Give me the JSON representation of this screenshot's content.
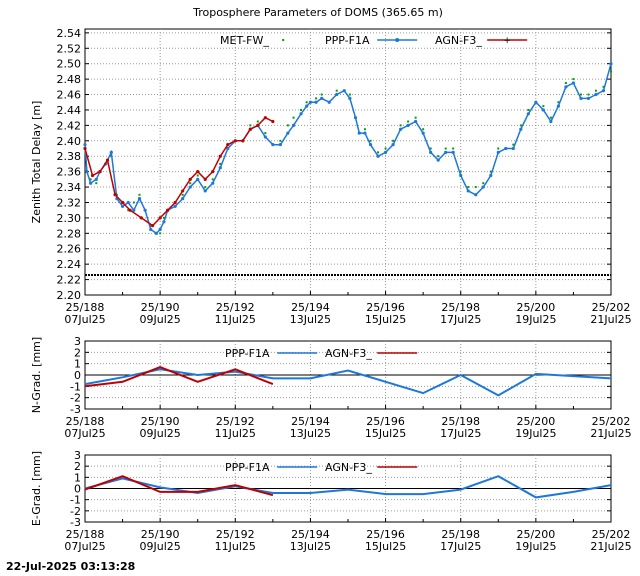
{
  "timestamp": "22-Jul-2025 03:13:28",
  "chart_data": [
    {
      "type": "scatter",
      "title": "Troposphere Parameters of DOMS (365.65 m)",
      "ylabel": "Zenith Total Delay [m]",
      "xlabel": "",
      "xlim": [
        188,
        202
      ],
      "ylim": [
        2.2,
        2.545
      ],
      "yticks": [
        "2.20",
        "2.22",
        "2.24",
        "2.26",
        "2.28",
        "2.30",
        "2.32",
        "2.34",
        "2.36",
        "2.38",
        "2.40",
        "2.42",
        "2.44",
        "2.46",
        "2.48",
        "2.50",
        "2.52",
        "2.54"
      ],
      "xticks": [
        {
          "top": "25/188",
          "bottom": "07Jul25"
        },
        {
          "top": "25/190",
          "bottom": "09Jul25"
        },
        {
          "top": "25/192",
          "bottom": "11Jul25"
        },
        {
          "top": "25/194",
          "bottom": "13Jul25"
        },
        {
          "top": "25/196",
          "bottom": "15Jul25"
        },
        {
          "top": "25/198",
          "bottom": "17Jul25"
        },
        {
          "top": "25/200",
          "bottom": "19Jul25"
        },
        {
          "top": "25/202",
          "bottom": "21Jul25"
        }
      ],
      "legend": [
        {
          "name": "MET-FW_",
          "color": "#00a000",
          "style": "points"
        },
        {
          "name": "PPP-F1A",
          "color": "#1e78dc",
          "style": "line-points"
        },
        {
          "name": "AGN-F3_",
          "color": "#c00000",
          "style": "line-cross"
        }
      ],
      "series": [
        {
          "name": "MET-FW_",
          "color": "#00a000",
          "x": [
            188.0,
            188.05,
            188.15,
            188.3,
            188.4,
            188.55,
            188.7,
            188.85,
            189.0,
            189.15,
            189.3,
            189.45,
            189.6,
            189.75,
            189.9,
            190.0,
            190.1,
            190.2,
            190.4,
            190.6,
            190.8,
            191.0,
            191.2,
            191.4,
            191.6,
            191.8,
            192.0,
            192.2,
            192.4,
            192.6,
            192.8,
            193.0,
            193.2,
            193.4,
            193.55,
            193.75,
            193.9,
            194.0,
            194.15,
            194.3,
            194.5,
            194.7,
            194.9,
            195.05,
            195.2,
            195.3,
            195.45,
            195.6,
            195.8,
            196.0,
            196.2,
            196.4,
            196.6,
            196.8,
            197.0,
            197.2,
            197.4,
            197.6,
            197.8,
            198.0,
            198.2,
            198.4,
            198.6,
            198.8,
            199.0,
            199.2,
            199.4,
            199.6,
            199.8,
            200.0,
            200.2,
            200.4,
            200.6,
            200.8,
            201.0,
            201.2,
            201.4,
            201.6,
            201.8,
            202.0
          ],
          "y": [
            2.39,
            2.36,
            2.35,
            2.345,
            2.36,
            2.37,
            2.38,
            2.33,
            2.315,
            2.31,
            2.32,
            2.33,
            2.31,
            2.29,
            2.28,
            2.28,
            2.3,
            2.31,
            2.32,
            2.33,
            2.345,
            2.355,
            2.34,
            2.35,
            2.37,
            2.395,
            2.4,
            2.4,
            2.42,
            2.425,
            2.41,
            2.395,
            2.4,
            2.42,
            2.43,
            2.44,
            2.45,
            2.45,
            2.455,
            2.46,
            2.45,
            2.465,
            2.465,
            2.46,
            2.43,
            2.41,
            2.415,
            2.4,
            2.385,
            2.39,
            2.4,
            2.42,
            2.425,
            2.43,
            2.415,
            2.39,
            2.38,
            2.39,
            2.39,
            2.36,
            2.34,
            2.34,
            2.345,
            2.36,
            2.39,
            2.39,
            2.395,
            2.42,
            2.44,
            2.45,
            2.445,
            2.43,
            2.45,
            2.475,
            2.48,
            2.46,
            2.46,
            2.465,
            2.47,
            2.49
          ]
        },
        {
          "name": "PPP-F1A",
          "color": "#1e78dc",
          "x": [
            188.0,
            188.05,
            188.15,
            188.3,
            188.4,
            188.55,
            188.7,
            188.85,
            189.0,
            189.15,
            189.3,
            189.45,
            189.6,
            189.75,
            189.9,
            190.0,
            190.1,
            190.2,
            190.4,
            190.6,
            190.8,
            191.0,
            191.2,
            191.4,
            191.6,
            191.8,
            192.0,
            192.2,
            192.4,
            192.6,
            192.8,
            193.0,
            193.2,
            193.4,
            193.55,
            193.75,
            193.9,
            194.0,
            194.15,
            194.3,
            194.5,
            194.7,
            194.9,
            195.05,
            195.2,
            195.3,
            195.45,
            195.6,
            195.8,
            196.0,
            196.2,
            196.4,
            196.6,
            196.8,
            197.0,
            197.2,
            197.4,
            197.6,
            197.8,
            198.0,
            198.2,
            198.4,
            198.6,
            198.8,
            199.0,
            199.2,
            199.4,
            199.6,
            199.8,
            200.0,
            200.2,
            200.4,
            200.6,
            200.8,
            201.0,
            201.2,
            201.4,
            201.6,
            201.8,
            202.0
          ],
          "y": [
            2.395,
            2.36,
            2.345,
            2.35,
            2.36,
            2.37,
            2.385,
            2.325,
            2.315,
            2.32,
            2.31,
            2.325,
            2.31,
            2.285,
            2.28,
            2.285,
            2.295,
            2.31,
            2.315,
            2.325,
            2.34,
            2.35,
            2.335,
            2.345,
            2.365,
            2.39,
            2.4,
            2.4,
            2.415,
            2.42,
            2.405,
            2.395,
            2.395,
            2.41,
            2.42,
            2.435,
            2.445,
            2.45,
            2.45,
            2.455,
            2.45,
            2.46,
            2.465,
            2.455,
            2.43,
            2.41,
            2.41,
            2.395,
            2.38,
            2.385,
            2.395,
            2.415,
            2.42,
            2.425,
            2.41,
            2.385,
            2.375,
            2.385,
            2.385,
            2.355,
            2.335,
            2.33,
            2.34,
            2.355,
            2.385,
            2.39,
            2.39,
            2.415,
            2.435,
            2.45,
            2.44,
            2.425,
            2.445,
            2.47,
            2.475,
            2.455,
            2.455,
            2.46,
            2.465,
            2.5
          ]
        },
        {
          "name": "AGN-F3_",
          "color": "#c00000",
          "x": [
            188.0,
            188.2,
            188.4,
            188.6,
            188.8,
            189.0,
            189.2,
            189.5,
            189.8,
            190.0,
            190.2,
            190.4,
            190.6,
            190.8,
            191.0,
            191.2,
            191.4,
            191.6,
            191.8,
            192.0,
            192.2,
            192.4,
            192.6,
            192.8,
            193.0
          ],
          "y": [
            2.39,
            2.355,
            2.36,
            2.375,
            2.33,
            2.32,
            2.31,
            2.3,
            2.29,
            2.3,
            2.31,
            2.32,
            2.335,
            2.35,
            2.36,
            2.35,
            2.36,
            2.38,
            2.395,
            2.4,
            2.4,
            2.415,
            2.42,
            2.43,
            2.425
          ]
        },
        {
          "name": "baseline",
          "color": "#000000",
          "x": [
            188,
            202
          ],
          "y": [
            2.226,
            2.226
          ]
        }
      ]
    },
    {
      "type": "line",
      "title": "",
      "ylabel": "N-Grad. [mm]",
      "xlim": [
        188,
        202
      ],
      "ylim": [
        -3,
        3
      ],
      "yticks": [
        "-3",
        "-2",
        "-1",
        "0",
        "1",
        "2",
        "3"
      ],
      "xticks": [
        {
          "top": "25/188",
          "bottom": "07Jul25"
        },
        {
          "top": "25/190",
          "bottom": "09Jul25"
        },
        {
          "top": "25/192",
          "bottom": "11Jul25"
        },
        {
          "top": "25/194",
          "bottom": "13Jul25"
        },
        {
          "top": "25/196",
          "bottom": "15Jul25"
        },
        {
          "top": "25/198",
          "bottom": "17Jul25"
        },
        {
          "top": "25/200",
          "bottom": "19Jul25"
        },
        {
          "top": "25/202",
          "bottom": "21Jul25"
        }
      ],
      "legend": [
        {
          "name": "PPP-F1A",
          "color": "#1e78dc"
        },
        {
          "name": "AGN-F3_",
          "color": "#c00000"
        }
      ],
      "series": [
        {
          "name": "PPP-F1A",
          "color": "#1e78dc",
          "x": [
            188,
            189,
            190,
            191,
            192,
            193,
            194,
            195,
            196,
            197,
            198,
            199,
            200,
            201,
            202
          ],
          "y": [
            -0.8,
            -0.2,
            0.5,
            0.0,
            0.3,
            -0.3,
            -0.3,
            0.4,
            -0.6,
            -1.6,
            0.0,
            -1.8,
            0.1,
            -0.1,
            -0.3
          ]
        },
        {
          "name": "AGN-F3_",
          "color": "#c00000",
          "x": [
            188,
            189,
            190,
            191,
            192,
            193
          ],
          "y": [
            -1.0,
            -0.6,
            0.7,
            -0.6,
            0.5,
            -0.8
          ]
        }
      ]
    },
    {
      "type": "line",
      "title": "",
      "ylabel": "E-Grad. [mm]",
      "xlim": [
        188,
        202
      ],
      "ylim": [
        -3,
        3
      ],
      "yticks": [
        "-3",
        "-2",
        "-1",
        "0",
        "1",
        "2",
        "3"
      ],
      "xticks": [
        {
          "top": "25/188",
          "bottom": "07Jul25"
        },
        {
          "top": "25/190",
          "bottom": "09Jul25"
        },
        {
          "top": "25/192",
          "bottom": "11Jul25"
        },
        {
          "top": "25/194",
          "bottom": "13Jul25"
        },
        {
          "top": "25/196",
          "bottom": "15Jul25"
        },
        {
          "top": "25/198",
          "bottom": "17Jul25"
        },
        {
          "top": "25/200",
          "bottom": "19Jul25"
        },
        {
          "top": "25/202",
          "bottom": "21Jul25"
        }
      ],
      "legend": [
        {
          "name": "PPP-F1A",
          "color": "#1e78dc"
        },
        {
          "name": "AGN-F3_",
          "color": "#c00000"
        }
      ],
      "series": [
        {
          "name": "PPP-F1A",
          "color": "#1e78dc",
          "x": [
            188,
            189,
            190,
            191,
            192,
            193,
            194,
            195,
            196,
            197,
            198,
            199,
            200,
            201,
            202
          ],
          "y": [
            0.0,
            0.9,
            0.1,
            -0.4,
            0.2,
            -0.4,
            -0.4,
            -0.1,
            -0.5,
            -0.5,
            -0.1,
            1.1,
            -0.8,
            -0.3,
            0.3
          ]
        },
        {
          "name": "AGN-F3_",
          "color": "#c00000",
          "x": [
            188,
            189,
            190,
            191,
            192,
            193
          ],
          "y": [
            -0.1,
            1.1,
            -0.3,
            -0.3,
            0.3,
            -0.6
          ]
        }
      ]
    }
  ]
}
